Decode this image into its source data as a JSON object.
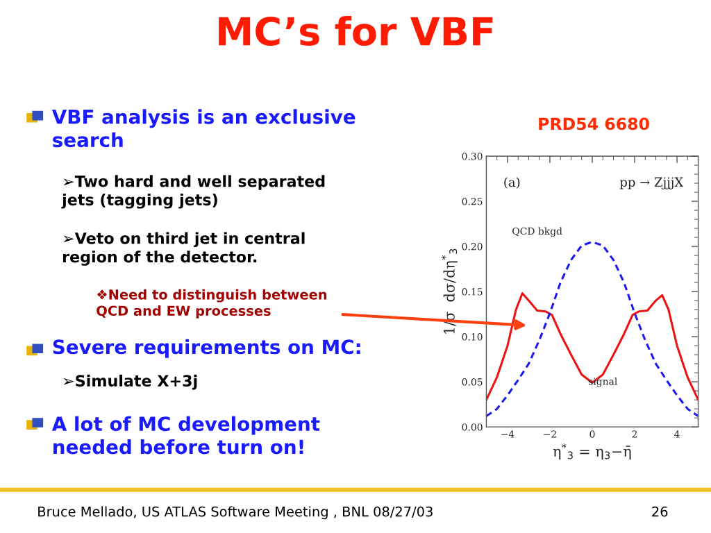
{
  "chart_data": {
    "type": "line",
    "title": "MC’s for VBF",
    "xlabel": "η$^{*}$$_{3}$ = η$_{3}$−η̄",
    "ylabel": "1/σ  dσ/dη$^{*}$$_{3}$",
    "xlim": [
      -5,
      5
    ],
    "xticks": [
      -4,
      -2,
      0,
      2,
      4
    ],
    "ylim": [
      0,
      0.3
    ],
    "yticks": [
      {
        "value": 0,
        "label": "0.00"
      },
      {
        "value": 0.05,
        "label": "0.05"
      },
      {
        "value": 0.1,
        "label": "0.10"
      },
      {
        "value": 0.15,
        "label": "0.15"
      },
      {
        "value": 0.2,
        "label": "0.20"
      },
      {
        "value": 0.25,
        "label": "0.25"
      },
      {
        "value": 0.3,
        "label": "0.30"
      }
    ],
    "x": [
      -5,
      -4.5,
      -4,
      -3.6,
      -3.3,
      -3,
      -2.6,
      -2.2,
      -1.9,
      -1.5,
      -1,
      -0.5,
      0,
      0.5,
      1,
      1.5,
      1.9,
      2.2,
      2.6,
      3,
      3.3,
      3.6,
      4,
      4.5,
      5
    ],
    "series": [
      {
        "name": "signal",
        "color": "#ee1111",
        "line_style": "solid",
        "values": [
          0.03,
          0.055,
          0.09,
          0.13,
          0.148,
          0.14,
          0.129,
          0.128,
          0.124,
          0.103,
          0.08,
          0.058,
          0.049,
          0.058,
          0.08,
          0.103,
          0.124,
          0.128,
          0.129,
          0.14,
          0.146,
          0.13,
          0.09,
          0.055,
          0.03
        ]
      },
      {
        "name": "QCD bkgd",
        "color": "#1a1aee",
        "line_style": "dashed",
        "x": [
          -5,
          -4.5,
          -4,
          -3.5,
          -3,
          -2.5,
          -2,
          -1.5,
          -1,
          -0.5,
          0,
          0.5,
          1,
          1.5,
          2,
          2.5,
          3,
          3.5,
          4,
          4.5,
          5
        ],
        "values": [
          0.012,
          0.02,
          0.035,
          0.052,
          0.07,
          0.096,
          0.126,
          0.16,
          0.185,
          0.201,
          0.205,
          0.201,
          0.185,
          0.16,
          0.126,
          0.096,
          0.07,
          0.052,
          0.035,
          0.02,
          0.012
        ]
      }
    ],
    "annotations": [
      "(a)",
      "pp → ZjjjX",
      "PRD54 6680",
      "VBF analysis is an exclusive\nsearch",
      "➢Two hard and well separated\njets (tagging jets)",
      "➢Veto on third jet in central\nregion of the detector.",
      "❖Need to distinguish between\nQCD and EW processes",
      "Severe requirements on MC:",
      "➢Simulate X+3j",
      "A lot of MC development\nneeded before turn on!",
      "Bruce Mellado, US ATLAS Software Meeting , BNL 08/27/03",
      "26"
    ],
    "grid": false,
    "legend": false
  }
}
